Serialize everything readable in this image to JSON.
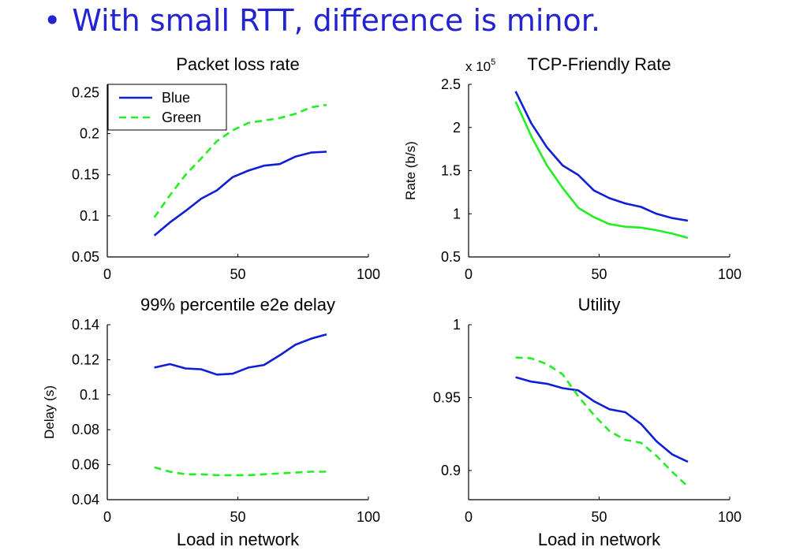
{
  "headline": {
    "bullet": "•",
    "text": "With small RTT, difference is minor."
  },
  "colors": {
    "blue": "#0f1fd6",
    "green": "#22ee22",
    "axis": "#000000",
    "headline": "#2323d2"
  },
  "chart_data": [
    {
      "type": "line",
      "title": "Packet loss rate",
      "xlabel": "",
      "ylabel": "",
      "xlim": [
        0,
        100
      ],
      "ylim": [
        0.05,
        0.26
      ],
      "xticks": [
        0,
        50,
        100
      ],
      "yticks": [
        0.05,
        0.1,
        0.15,
        0.2,
        0.25
      ],
      "ytick_labels": [
        "0.05",
        "0.1",
        "0.15",
        "0.2",
        "0.25"
      ],
      "legend": {
        "placement": "top-left",
        "entries": [
          "Blue",
          "Green"
        ]
      },
      "series": [
        {
          "name": "Blue",
          "color": "blue",
          "dash": false,
          "x": [
            18,
            24,
            30,
            36,
            42,
            48,
            54,
            60,
            66,
            72,
            78,
            84
          ],
          "y": [
            0.076,
            0.092,
            0.106,
            0.121,
            0.131,
            0.147,
            0.155,
            0.161,
            0.163,
            0.172,
            0.177,
            0.178
          ]
        },
        {
          "name": "Green",
          "color": "green",
          "dash": true,
          "x": [
            18,
            24,
            30,
            36,
            42,
            48,
            54,
            60,
            66,
            72,
            78,
            84
          ],
          "y": [
            0.098,
            0.125,
            0.15,
            0.17,
            0.191,
            0.204,
            0.213,
            0.216,
            0.219,
            0.224,
            0.232,
            0.235
          ]
        }
      ]
    },
    {
      "type": "line",
      "title": "TCP-Friendly Rate",
      "scale_note": "x 10^5",
      "xlabel": "",
      "ylabel": "Rate (b/s)",
      "xlim": [
        0,
        100
      ],
      "ylim": [
        0.5,
        2.5
      ],
      "xticks": [
        0,
        50,
        100
      ],
      "yticks": [
        0.5,
        1,
        1.5,
        2,
        2.5
      ],
      "ytick_labels": [
        "0.5",
        "1",
        "1.5",
        "2",
        "2.5"
      ],
      "series": [
        {
          "color": "blue",
          "dash": false,
          "x": [
            18,
            24,
            30,
            36,
            42,
            48,
            54,
            60,
            66,
            72,
            78,
            84
          ],
          "y": [
            2.42,
            2.05,
            1.77,
            1.56,
            1.45,
            1.27,
            1.18,
            1.12,
            1.08,
            1.0,
            0.95,
            0.92
          ]
        },
        {
          "color": "green",
          "dash": false,
          "x": [
            18,
            24,
            30,
            36,
            42,
            48,
            54,
            60,
            66,
            72,
            78,
            84
          ],
          "y": [
            2.3,
            1.9,
            1.56,
            1.3,
            1.07,
            0.96,
            0.88,
            0.85,
            0.84,
            0.81,
            0.77,
            0.72
          ]
        }
      ]
    },
    {
      "type": "line",
      "title": "99% percentile e2e delay",
      "xlabel": "Load in network",
      "ylabel": "Delay (s)",
      "xlim": [
        0,
        100
      ],
      "ylim": [
        0.04,
        0.14
      ],
      "xticks": [
        0,
        50,
        100
      ],
      "yticks": [
        0.04,
        0.06,
        0.08,
        0.1,
        0.12,
        0.14
      ],
      "ytick_labels": [
        "0.04",
        "0.06",
        "0.08",
        "0.1",
        "0.12",
        "0.14"
      ],
      "series": [
        {
          "color": "blue",
          "dash": false,
          "x": [
            18,
            24,
            30,
            36,
            42,
            48,
            54,
            60,
            66,
            72,
            78,
            84
          ],
          "y": [
            0.1155,
            0.1175,
            0.115,
            0.1145,
            0.1115,
            0.112,
            0.1155,
            0.117,
            0.1225,
            0.1285,
            0.132,
            0.1345
          ]
        },
        {
          "color": "green",
          "dash": true,
          "x": [
            18,
            24,
            30,
            36,
            42,
            48,
            54,
            60,
            66,
            72,
            78,
            84
          ],
          "y": [
            0.0585,
            0.056,
            0.0545,
            0.0545,
            0.054,
            0.054,
            0.054,
            0.0545,
            0.055,
            0.0555,
            0.056,
            0.056
          ]
        }
      ]
    },
    {
      "type": "line",
      "title": "Utility",
      "xlabel": "Load in network",
      "ylabel": "",
      "xlim": [
        0,
        100
      ],
      "ylim": [
        0.88,
        1.0
      ],
      "xticks": [
        0,
        50,
        100
      ],
      "yticks": [
        0.9,
        0.95,
        1.0
      ],
      "ytick_labels": [
        "0.9",
        "0.95",
        "1"
      ],
      "series": [
        {
          "color": "blue",
          "dash": false,
          "x": [
            18,
            24,
            30,
            36,
            42,
            48,
            54,
            60,
            66,
            72,
            78,
            84
          ],
          "y": [
            0.964,
            0.961,
            0.9595,
            0.9565,
            0.955,
            0.9475,
            0.942,
            0.94,
            0.932,
            0.92,
            0.911,
            0.906
          ]
        },
        {
          "color": "green",
          "dash": true,
          "x": [
            18,
            24,
            30,
            36,
            42,
            48,
            54,
            60,
            66,
            72,
            78,
            84
          ],
          "y": [
            0.9775,
            0.977,
            0.973,
            0.966,
            0.951,
            0.938,
            0.927,
            0.921,
            0.919,
            0.91,
            0.899,
            0.889
          ]
        }
      ]
    }
  ]
}
